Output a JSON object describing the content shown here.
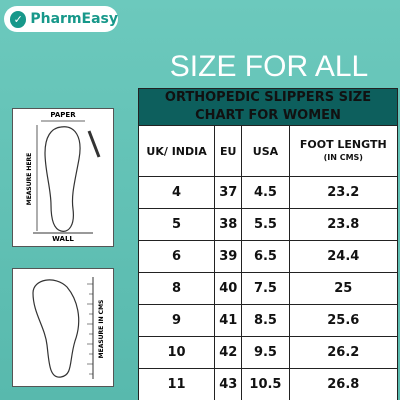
{
  "brand": "PharmEasy",
  "title": "SIZE FOR ALL",
  "guide": {
    "top": {
      "paper": "PAPER",
      "side": "MEASURE HERE",
      "wall": "WALL"
    },
    "bottom": {
      "side": "MEASURE IN CMS"
    }
  },
  "table": {
    "caption": "ORTHOPEDIC SLIPPERS SIZE CHART FOR WOMEN",
    "columns": [
      "UK/ INDIA",
      "EU",
      "USA",
      "FOOT LENGTH",
      "(IN CMS)"
    ],
    "rows": [
      [
        "4",
        "37",
        "4.5",
        "23.2"
      ],
      [
        "5",
        "38",
        "5.5",
        "23.8"
      ],
      [
        "6",
        "39",
        "6.5",
        "24.4"
      ],
      [
        "8",
        "40",
        "7.5",
        "25"
      ],
      [
        "9",
        "41",
        "8.5",
        "25.6"
      ],
      [
        "10",
        "42",
        "9.5",
        "26.2"
      ],
      [
        "11",
        "43",
        "10.5",
        "26.8"
      ]
    ]
  }
}
